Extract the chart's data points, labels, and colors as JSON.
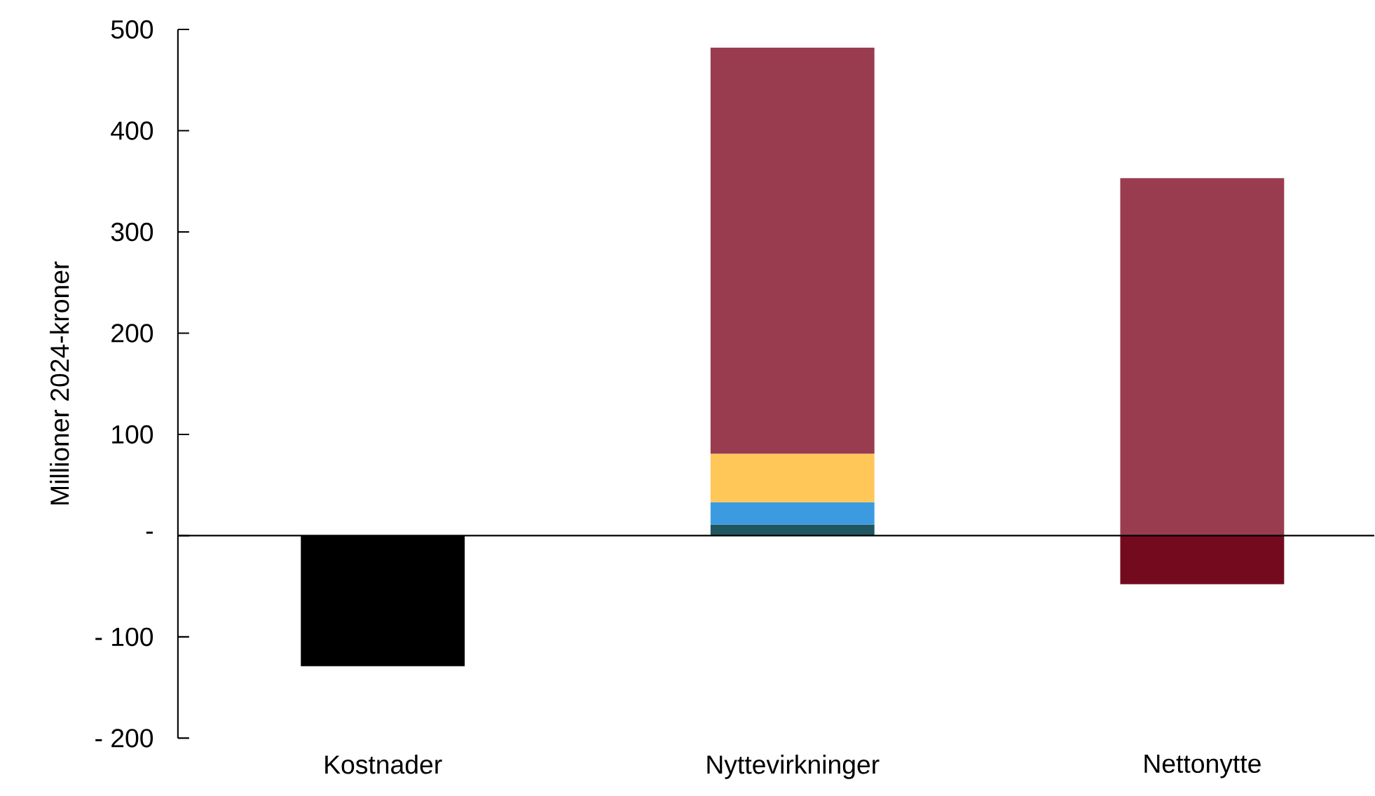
{
  "chart_data": {
    "type": "bar",
    "stacked": true,
    "ylabel": "Millioner 2024-kroner",
    "categories": [
      "Kostnader",
      "Nyttevirkninger",
      "Nettonytte"
    ],
    "series": [
      {
        "color": "#000000",
        "values": [
          -129,
          null,
          null
        ]
      },
      {
        "color": "#1f5660",
        "values": [
          null,
          11,
          null
        ]
      },
      {
        "color": "#3c9be0",
        "values": [
          null,
          22,
          null
        ]
      },
      {
        "color": "#ffc758",
        "values": [
          null,
          48,
          null
        ]
      },
      {
        "color": "#730a1e",
        "values": [
          null,
          null,
          -48
        ]
      },
      {
        "color": "#9a3c50",
        "values": [
          null,
          401,
          353
        ]
      }
    ],
    "ylim": [
      -200,
      500
    ],
    "yticks": [
      {
        "value": -200,
        "label": "- 200"
      },
      {
        "value": -100,
        "label": "- 100"
      },
      {
        "value": 0,
        "label": "-"
      },
      100,
      200,
      300,
      400,
      500
    ],
    "tick_labels": "xy"
  }
}
